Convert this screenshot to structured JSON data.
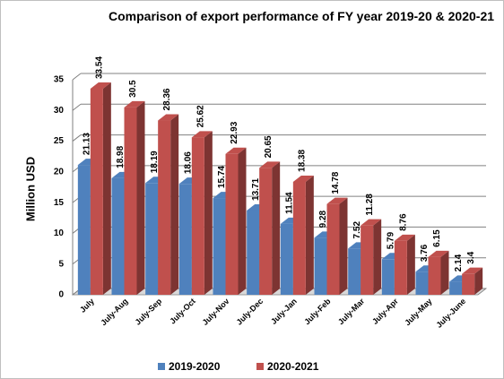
{
  "chart_data": {
    "type": "bar3d",
    "title": "Comparison of export performance of FY year 2019-20 & 2020-21",
    "y_label": "Million USD",
    "categories": [
      "July",
      "July-Aug",
      "July-Sep",
      "July-Oct",
      "July-Nov",
      "July-Dec",
      "July-Jan",
      "July-Feb",
      "July-Mar",
      "July-Apr",
      "July-May",
      "July-June"
    ],
    "series": [
      {
        "name": "2019-2020",
        "color": "#4f81bd",
        "values": [
          21.13,
          18.98,
          18.19,
          18.06,
          15.74,
          13.71,
          11.54,
          9.28,
          7.52,
          5.79,
          3.76,
          2.14
        ]
      },
      {
        "name": "2020-2021",
        "color": "#c0504d",
        "values": [
          33.54,
          30.5,
          28.36,
          25.62,
          22.93,
          20.65,
          18.38,
          14.78,
          11.28,
          8.76,
          6.15,
          3.4
        ]
      }
    ],
    "ylim": [
      0,
      35
    ],
    "yticks": [
      0,
      5,
      10,
      15,
      20,
      25,
      30,
      35
    ],
    "grid": true,
    "legend": "bottom"
  }
}
